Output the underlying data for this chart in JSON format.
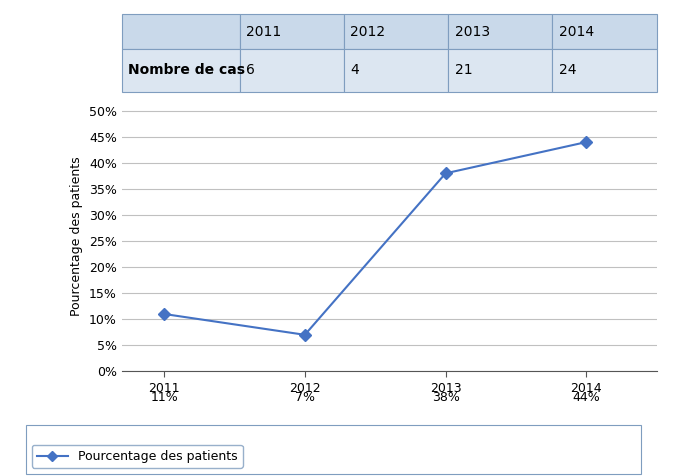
{
  "years": [
    "2011",
    "2012",
    "2013",
    "2014"
  ],
  "nombre_de_cas": [
    6,
    4,
    21,
    24
  ],
  "percentages": [
    0.11,
    0.07,
    0.38,
    0.44
  ],
  "percentage_labels": [
    "11%",
    "7%",
    "38%",
    "44%"
  ],
  "table_header_bg": "#c9d9ea",
  "table_row_bg": "#dce6f1",
  "table_border_color": "#7f9dbf",
  "line_color": "#4472c4",
  "marker_style": "D",
  "marker_size": 6,
  "ylabel": "Pourcentage des patients",
  "yticks": [
    0.0,
    0.05,
    0.1,
    0.15,
    0.2,
    0.25,
    0.3,
    0.35,
    0.4,
    0.45,
    0.5
  ],
  "ytick_labels": [
    "0%",
    "5%",
    "10%",
    "15%",
    "20%",
    "25%",
    "30%",
    "35%",
    "40%",
    "45%",
    "50%"
  ],
  "legend_label": "Pourcentage des patients",
  "grid_color": "#c0c0c0",
  "axis_label_fontsize": 9,
  "tick_fontsize": 9,
  "table_fontsize": 10,
  "legend_fontsize": 9
}
